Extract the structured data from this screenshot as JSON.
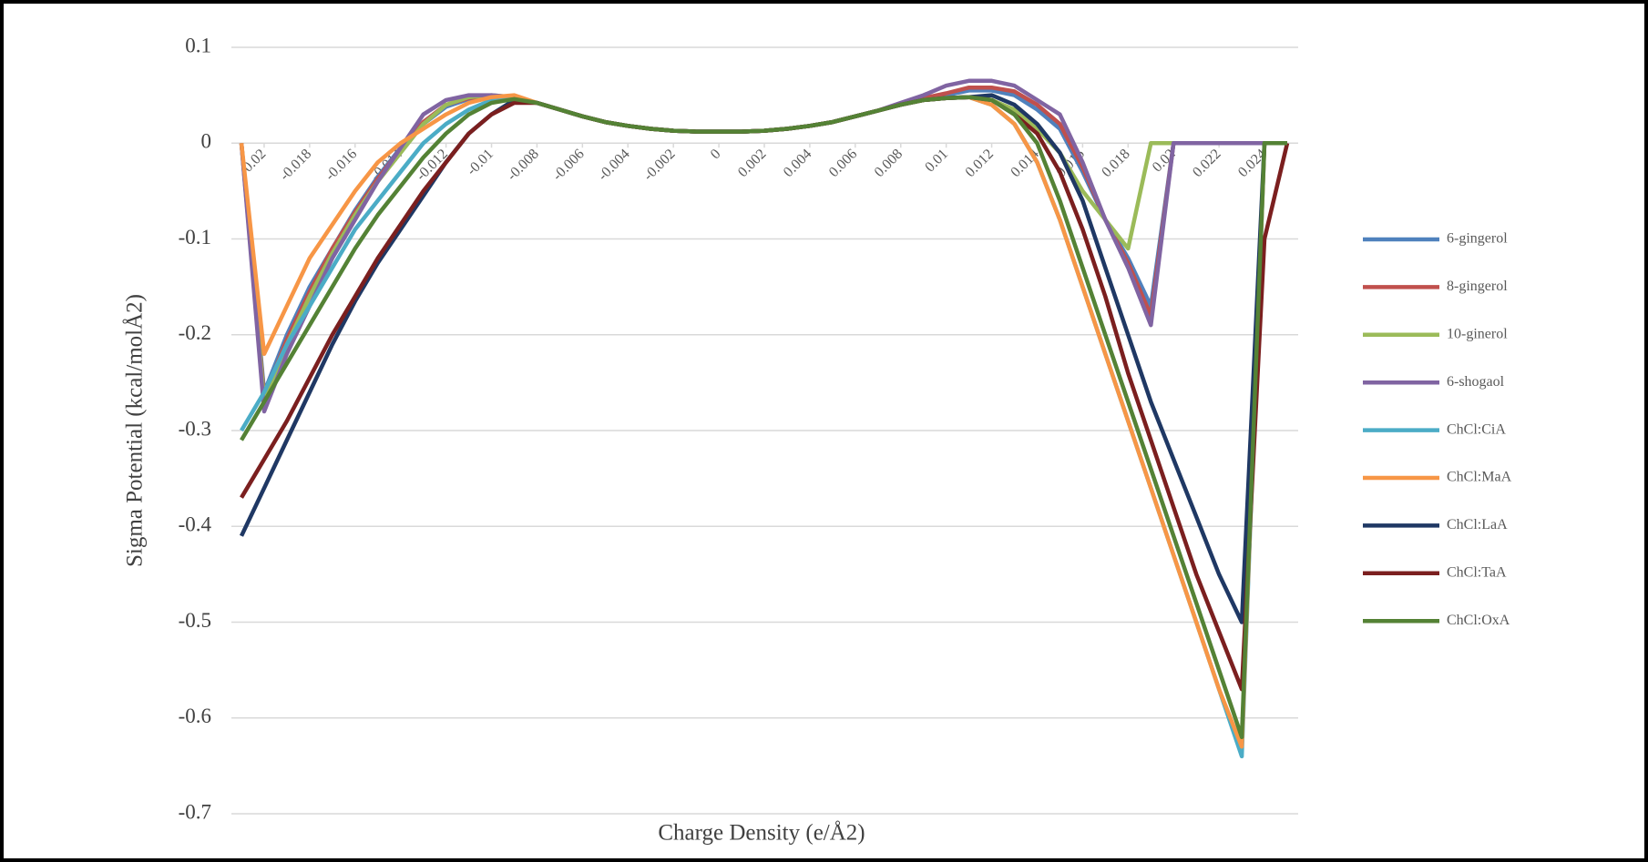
{
  "chart_data": {
    "type": "line",
    "x_label": "Charge Density (e/Å2)",
    "y_label": "Sigma Potential (kcal/molÅ2)",
    "x": [
      -0.021,
      -0.02,
      -0.019,
      -0.018,
      -0.017,
      -0.016,
      -0.015,
      -0.014,
      -0.013,
      -0.012,
      -0.011,
      -0.01,
      -0.009,
      -0.008,
      -0.007,
      -0.006,
      -0.005,
      -0.004,
      -0.003,
      -0.002,
      -0.001,
      0,
      0.001,
      0.002,
      0.003,
      0.004,
      0.005,
      0.006,
      0.007,
      0.008,
      0.009,
      0.01,
      0.011,
      0.012,
      0.013,
      0.014,
      0.015,
      0.016,
      0.017,
      0.018,
      0.019,
      0.02,
      0.021,
      0.022,
      0.023,
      0.024,
      0.025
    ],
    "xlim": [
      -0.021,
      0.025
    ],
    "xticks": [
      -0.02,
      -0.018,
      -0.016,
      -0.014,
      -0.012,
      -0.01,
      -0.008,
      -0.006,
      -0.004,
      -0.002,
      0,
      0.002,
      0.004,
      0.006,
      0.008,
      0.01,
      0.012,
      0.014,
      0.016,
      0.018,
      0.02,
      0.022,
      0.024
    ],
    "ylim": [
      -0.7,
      0.1
    ],
    "yticks": [
      0.1,
      0,
      -0.1,
      -0.2,
      -0.3,
      -0.4,
      -0.5,
      -0.6,
      -0.7
    ],
    "grid": true,
    "legend": "right",
    "series": [
      {
        "name": "6-gingerol",
        "color": "#4f81bd",
        "values": [
          0,
          -0.26,
          -0.2,
          -0.15,
          -0.11,
          -0.07,
          -0.035,
          -0.005,
          0.02,
          0.038,
          0.046,
          0.049,
          0.048,
          0.042,
          0.035,
          0.028,
          0.022,
          0.018,
          0.015,
          0.013,
          0.012,
          0.012,
          0.012,
          0.013,
          0.015,
          0.018,
          0.022,
          0.028,
          0.034,
          0.04,
          0.046,
          0.05,
          0.055,
          0.055,
          0.05,
          0.035,
          0.015,
          -0.03,
          -0.08,
          -0.12,
          -0.17,
          0,
          0,
          0,
          0,
          0,
          0
        ]
      },
      {
        "name": "8-gingerol",
        "color": "#c0504d",
        "values": [
          0,
          -0.265,
          -0.205,
          -0.155,
          -0.11,
          -0.072,
          -0.037,
          -0.006,
          0.022,
          0.04,
          0.047,
          0.049,
          0.048,
          0.042,
          0.035,
          0.028,
          0.022,
          0.018,
          0.015,
          0.013,
          0.012,
          0.012,
          0.012,
          0.013,
          0.015,
          0.018,
          0.022,
          0.028,
          0.034,
          0.041,
          0.047,
          0.052,
          0.058,
          0.058,
          0.054,
          0.04,
          0.02,
          -0.025,
          -0.08,
          -0.125,
          -0.18,
          0,
          0,
          0,
          0,
          0,
          0
        ]
      },
      {
        "name": "10-ginerol",
        "color": "#9bbb59",
        "values": [
          0,
          -0.27,
          -0.21,
          -0.16,
          -0.115,
          -0.075,
          -0.04,
          -0.01,
          0.02,
          0.04,
          0.048,
          0.05,
          0.048,
          0.042,
          0.035,
          0.028,
          0.022,
          0.018,
          0.015,
          0.013,
          0.012,
          0.012,
          0.012,
          0.013,
          0.015,
          0.018,
          0.022,
          0.028,
          0.034,
          0.04,
          0.045,
          0.047,
          0.048,
          0.045,
          0.035,
          0.015,
          -0.01,
          -0.05,
          -0.08,
          -0.11,
          0,
          0,
          0,
          0,
          0,
          0,
          0
        ]
      },
      {
        "name": "6-shogaol",
        "color": "#8064a2",
        "values": [
          0,
          -0.28,
          -0.22,
          -0.17,
          -0.12,
          -0.08,
          -0.04,
          -0.005,
          0.03,
          0.045,
          0.05,
          0.05,
          0.048,
          0.042,
          0.035,
          0.028,
          0.022,
          0.018,
          0.015,
          0.013,
          0.012,
          0.012,
          0.012,
          0.013,
          0.015,
          0.018,
          0.022,
          0.028,
          0.034,
          0.042,
          0.05,
          0.06,
          0.065,
          0.065,
          0.06,
          0.045,
          0.03,
          -0.02,
          -0.08,
          -0.13,
          -0.19,
          0,
          0,
          0,
          0,
          0,
          0
        ]
      },
      {
        "name": "ChCl:CiA",
        "color": "#4bacc6",
        "values": [
          -0.3,
          -0.26,
          -0.21,
          -0.17,
          -0.13,
          -0.09,
          -0.06,
          -0.03,
          0,
          0.02,
          0.035,
          0.045,
          0.048,
          0.042,
          0.035,
          0.028,
          0.022,
          0.018,
          0.015,
          0.013,
          0.012,
          0.012,
          0.012,
          0.013,
          0.015,
          0.018,
          0.022,
          0.028,
          0.034,
          0.04,
          0.045,
          0.047,
          0.048,
          0.04,
          0.02,
          -0.02,
          -0.08,
          -0.15,
          -0.22,
          -0.29,
          -0.36,
          -0.43,
          -0.5,
          -0.57,
          -0.64,
          0,
          0
        ]
      },
      {
        "name": "ChCl:MaA",
        "color": "#f79646",
        "values": [
          0,
          -0.22,
          -0.17,
          -0.12,
          -0.085,
          -0.05,
          -0.02,
          0,
          0.015,
          0.03,
          0.042,
          0.048,
          0.05,
          0.042,
          0.035,
          0.028,
          0.022,
          0.018,
          0.015,
          0.013,
          0.012,
          0.012,
          0.012,
          0.013,
          0.015,
          0.018,
          0.022,
          0.028,
          0.034,
          0.04,
          0.045,
          0.047,
          0.048,
          0.04,
          0.02,
          -0.02,
          -0.08,
          -0.15,
          -0.22,
          -0.29,
          -0.36,
          -0.43,
          -0.5,
          -0.57,
          -0.63,
          0,
          0
        ]
      },
      {
        "name": "ChCl:LaA",
        "color": "#1f3864",
        "values": [
          -0.41,
          -0.36,
          -0.31,
          -0.26,
          -0.21,
          -0.165,
          -0.125,
          -0.09,
          -0.055,
          -0.02,
          0.01,
          0.03,
          0.045,
          0.042,
          0.035,
          0.028,
          0.022,
          0.018,
          0.015,
          0.013,
          0.012,
          0.012,
          0.012,
          0.013,
          0.015,
          0.018,
          0.022,
          0.028,
          0.034,
          0.04,
          0.045,
          0.047,
          0.048,
          0.05,
          0.04,
          0.02,
          -0.01,
          -0.06,
          -0.13,
          -0.2,
          -0.27,
          -0.33,
          -0.39,
          -0.45,
          -0.5,
          0,
          0
        ]
      },
      {
        "name": "ChCl:TaA",
        "color": "#7b1f1f",
        "values": [
          -0.37,
          -0.33,
          -0.29,
          -0.245,
          -0.2,
          -0.16,
          -0.12,
          -0.085,
          -0.05,
          -0.02,
          0.01,
          0.03,
          0.042,
          0.042,
          0.035,
          0.028,
          0.022,
          0.018,
          0.015,
          0.013,
          0.012,
          0.012,
          0.012,
          0.013,
          0.015,
          0.018,
          0.022,
          0.028,
          0.034,
          0.04,
          0.045,
          0.047,
          0.048,
          0.045,
          0.03,
          0.01,
          -0.03,
          -0.09,
          -0.16,
          -0.24,
          -0.31,
          -0.38,
          -0.45,
          -0.51,
          -0.57,
          -0.1,
          0
        ]
      },
      {
        "name": "ChCl:OxA",
        "color": "#548235",
        "values": [
          -0.31,
          -0.27,
          -0.23,
          -0.19,
          -0.15,
          -0.11,
          -0.075,
          -0.045,
          -0.015,
          0.01,
          0.03,
          0.042,
          0.046,
          0.042,
          0.035,
          0.028,
          0.022,
          0.018,
          0.015,
          0.013,
          0.012,
          0.012,
          0.012,
          0.013,
          0.015,
          0.018,
          0.022,
          0.028,
          0.034,
          0.04,
          0.045,
          0.047,
          0.048,
          0.045,
          0.03,
          0,
          -0.06,
          -0.13,
          -0.2,
          -0.27,
          -0.34,
          -0.41,
          -0.48,
          -0.55,
          -0.62,
          0,
          0
        ]
      }
    ]
  }
}
